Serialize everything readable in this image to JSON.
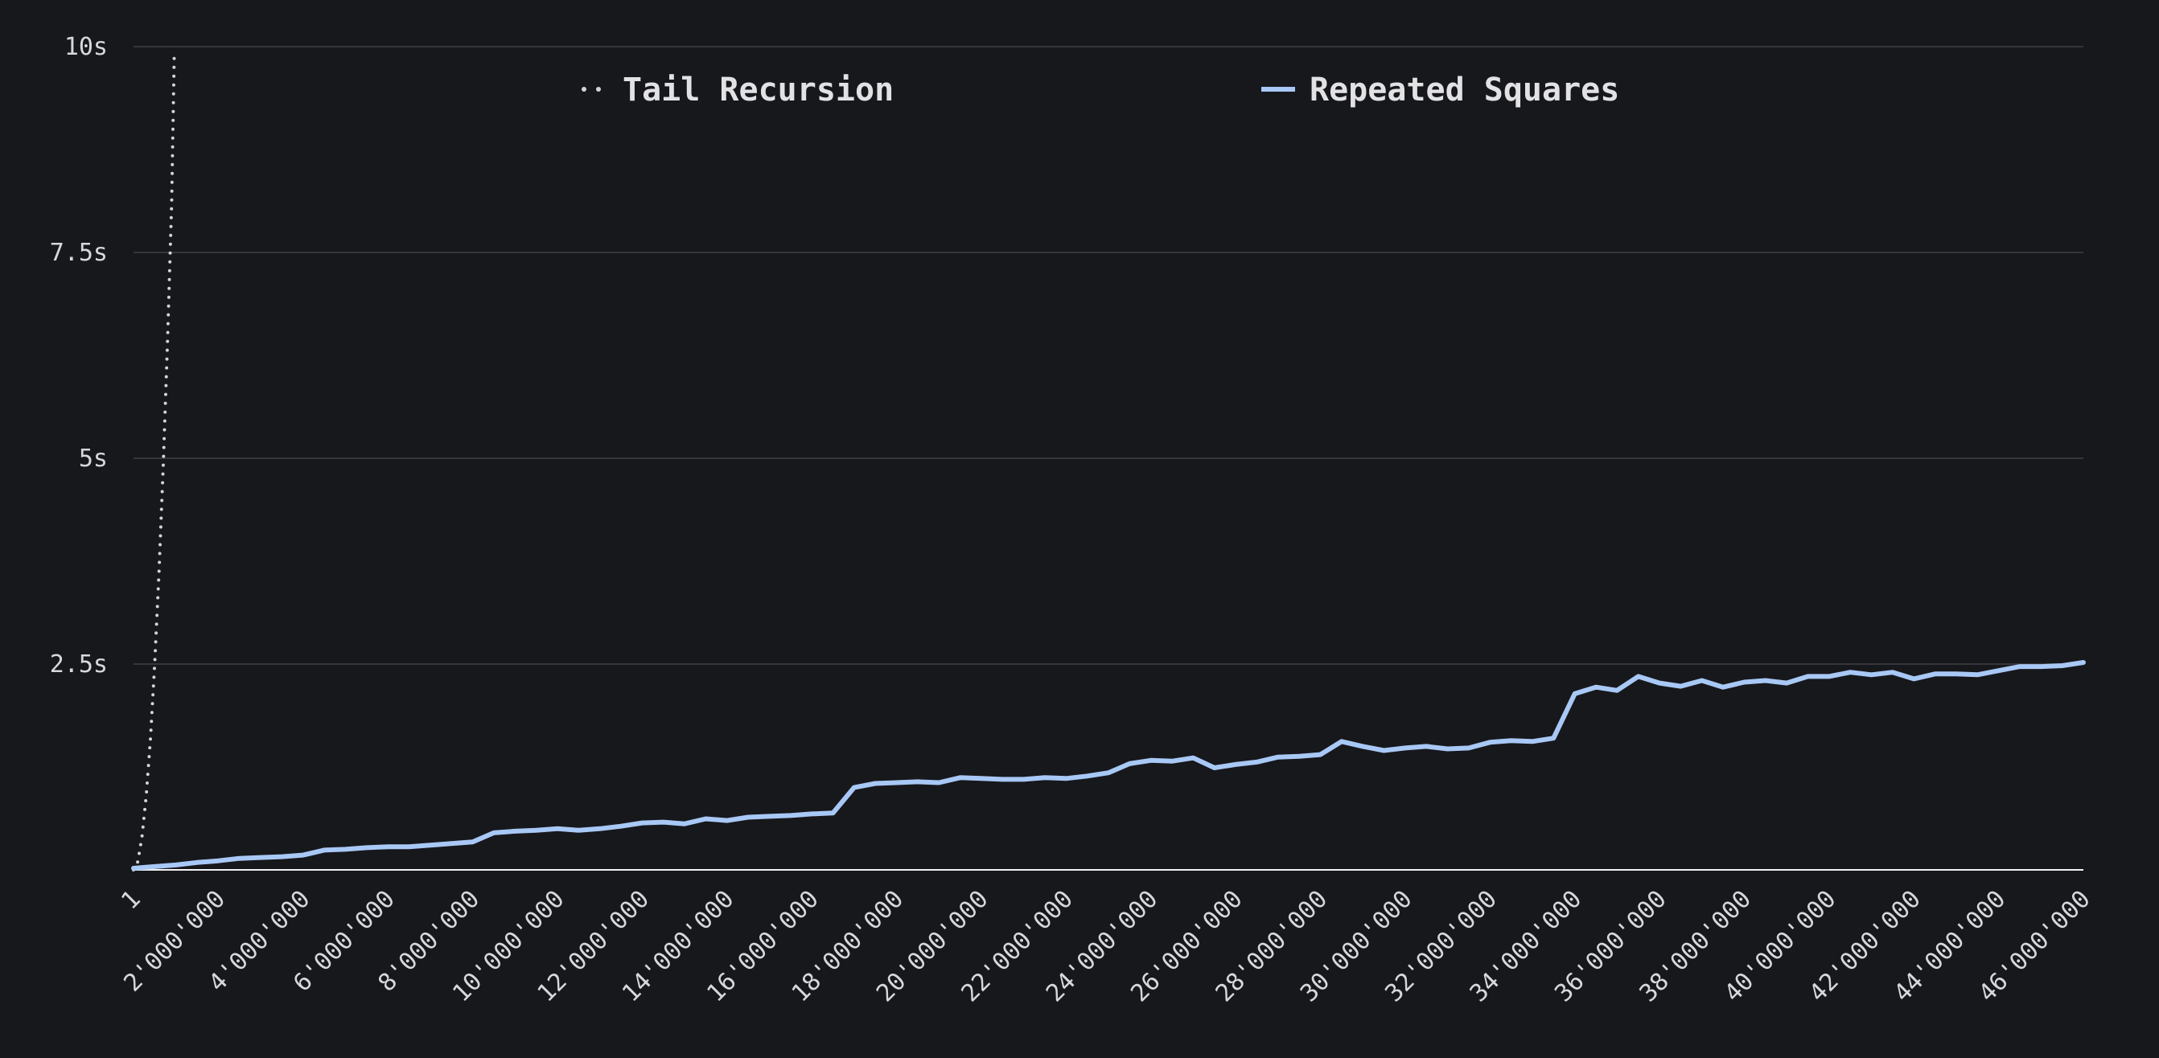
{
  "chart_data": {
    "type": "line",
    "x_tick_labels": [
      "1",
      "2'000'000",
      "4'000'000",
      "6'000'000",
      "8'000'000",
      "10'000'000",
      "12'000'000",
      "14'000'000",
      "16'000'000",
      "18'000'000",
      "20'000'000",
      "22'000'000",
      "24'000'000",
      "26'000'000",
      "28'000'000",
      "30'000'000",
      "32'000'000",
      "34'000'000",
      "36'000'000",
      "38'000'000",
      "40'000'000",
      "42'000'000",
      "44'000'000",
      "46'000'000"
    ],
    "x_tick_values": [
      1,
      2000000,
      4000000,
      6000000,
      8000000,
      10000000,
      12000000,
      14000000,
      16000000,
      18000000,
      20000000,
      22000000,
      24000000,
      26000000,
      28000000,
      30000000,
      32000000,
      34000000,
      36000000,
      38000000,
      40000000,
      42000000,
      44000000,
      46000000
    ],
    "y_tick_labels": [
      "2.5s",
      "5s",
      "7.5s",
      "10s"
    ],
    "y_tick_values": [
      2.5,
      5,
      7.5,
      10
    ],
    "xlim": [
      1,
      46000000
    ],
    "ylim": [
      0,
      10
    ],
    "grid": "horizontal",
    "legend_position": "top",
    "series": [
      {
        "name": "Tail Recursion",
        "style": "dotted",
        "color": "#d4d4d6",
        "x": [
          1,
          100000,
          200000,
          300000,
          400000,
          500000,
          600000,
          700000,
          800000,
          900000,
          960000
        ],
        "y": [
          0,
          0.1,
          0.4,
          0.9,
          1.6,
          2.5,
          3.6,
          4.9,
          6.4,
          8.1,
          9.9
        ]
      },
      {
        "name": "Repeated Squares",
        "style": "solid",
        "color": "#a8c8f5",
        "x": [
          1,
          500000,
          1000000,
          1500000,
          2000000,
          2500000,
          3000000,
          3500000,
          4000000,
          4500000,
          5000000,
          5500000,
          6000000,
          6500000,
          7000000,
          7500000,
          8000000,
          8500000,
          9000000,
          9500000,
          10000000,
          10500000,
          11000000,
          11500000,
          12000000,
          12500000,
          13000000,
          13500000,
          14000000,
          14500000,
          15000000,
          15500000,
          16000000,
          16500000,
          17000000,
          17500000,
          18000000,
          18500000,
          19000000,
          19500000,
          20000000,
          20500000,
          21000000,
          21500000,
          22000000,
          22500000,
          23000000,
          23500000,
          24000000,
          24500000,
          25000000,
          25500000,
          26000000,
          26500000,
          27000000,
          27500000,
          28000000,
          28500000,
          29000000,
          29500000,
          30000000,
          30500000,
          31000000,
          31500000,
          32000000,
          32500000,
          33000000,
          33500000,
          34000000,
          34500000,
          35000000,
          35500000,
          36000000,
          36500000,
          37000000,
          37500000,
          38000000,
          38500000,
          39000000,
          39500000,
          40000000,
          40500000,
          41000000,
          41500000,
          42000000,
          42500000,
          43000000,
          43500000,
          44000000,
          44500000,
          45000000,
          45500000,
          46000000
        ],
        "y": [
          0.02,
          0.04,
          0.06,
          0.09,
          0.11,
          0.14,
          0.15,
          0.16,
          0.18,
          0.24,
          0.25,
          0.27,
          0.28,
          0.28,
          0.3,
          0.32,
          0.34,
          0.45,
          0.47,
          0.48,
          0.5,
          0.48,
          0.5,
          0.53,
          0.57,
          0.58,
          0.56,
          0.62,
          0.6,
          0.64,
          0.65,
          0.66,
          0.68,
          0.69,
          1.0,
          1.05,
          1.06,
          1.07,
          1.06,
          1.12,
          1.11,
          1.1,
          1.1,
          1.12,
          1.11,
          1.14,
          1.18,
          1.29,
          1.33,
          1.32,
          1.36,
          1.24,
          1.28,
          1.31,
          1.37,
          1.38,
          1.4,
          1.56,
          1.5,
          1.45,
          1.48,
          1.5,
          1.47,
          1.48,
          1.55,
          1.57,
          1.56,
          1.6,
          2.14,
          2.22,
          2.18,
          2.35,
          2.27,
          2.23,
          2.3,
          2.22,
          2.28,
          2.3,
          2.27,
          2.35,
          2.35,
          2.4,
          2.37,
          2.4,
          2.32,
          2.38,
          2.38,
          2.37,
          2.42,
          2.47,
          2.47,
          2.48,
          2.52
        ]
      }
    ]
  }
}
